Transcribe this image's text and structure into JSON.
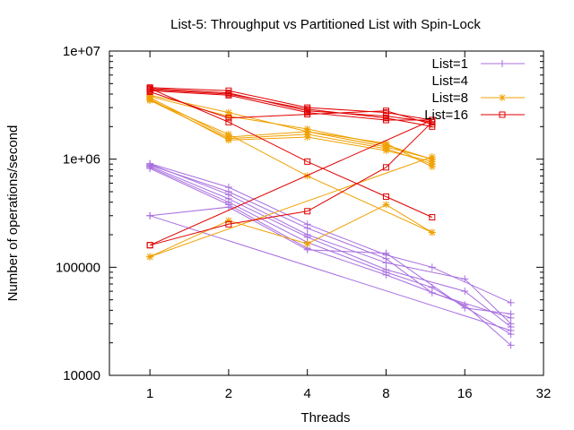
{
  "chart_data": {
    "type": "line",
    "title": "List-5: Throughput vs Partitioned List with Spin-Lock",
    "xlabel": "Threads",
    "ylabel": "Number of operations/second",
    "x_scale": "log2",
    "y_scale": "log10",
    "xlim": [
      0.7,
      32
    ],
    "ylim": [
      10000,
      10000000
    ],
    "x_ticks": [
      1,
      2,
      4,
      8,
      16,
      32
    ],
    "x_tick_labels": [
      "1",
      "2",
      "4",
      "8",
      "16",
      "32"
    ],
    "y_ticks": [
      10000,
      100000,
      1000000,
      10000000
    ],
    "y_tick_labels": [
      "10000",
      "100000",
      "1e+06",
      "1e+07"
    ],
    "grid": false,
    "legend_position": "top-right",
    "series": [
      {
        "name": "List=1",
        "color": "#a86ee0",
        "marker": "plus",
        "lines": [
          [
            [
              1,
              910000
            ],
            [
              2,
              550000
            ],
            [
              4,
              250000
            ],
            [
              8,
              130000
            ],
            [
              12,
              100000
            ],
            [
              24,
              47000
            ]
          ],
          [
            [
              1,
              880000
            ],
            [
              2,
              500000
            ],
            [
              4,
              230000
            ],
            [
              8,
              120000
            ],
            [
              12,
              58000
            ],
            [
              24,
              34000
            ]
          ],
          [
            [
              1,
              900000
            ],
            [
              2,
              470000
            ],
            [
              4,
              200000
            ],
            [
              8,
              110000
            ],
            [
              16,
              78000
            ],
            [
              24,
              30000
            ]
          ],
          [
            [
              1,
              860000
            ],
            [
              2,
              430000
            ],
            [
              4,
              190000
            ],
            [
              8,
              95000
            ],
            [
              16,
              60000
            ],
            [
              24,
              28000
            ]
          ],
          [
            [
              1,
              840000
            ],
            [
              2,
              400000
            ],
            [
              4,
              170000
            ],
            [
              8,
              90000
            ],
            [
              12,
              65000
            ],
            [
              24,
              24000
            ]
          ],
          [
            [
              1,
              820000
            ],
            [
              2,
              380000
            ],
            [
              4,
              150000
            ],
            [
              8,
              85000
            ],
            [
              16,
              45000
            ],
            [
              24,
              19000
            ]
          ],
          [
            [
              1,
              300000
            ],
            [
              2,
              360000
            ],
            [
              4,
              145000
            ],
            [
              8,
              135000
            ],
            [
              16,
              42000
            ],
            [
              24,
              37000
            ]
          ],
          [
            [
              1,
              300000
            ],
            [
              24,
              26000
            ]
          ]
        ]
      },
      {
        "name": "List=4",
        "color": "#ffffff",
        "marker": "none",
        "lines": []
      },
      {
        "name": "List=8",
        "color": "#f0a000",
        "marker": "star",
        "lines": [
          [
            [
              1,
              3700000
            ],
            [
              2,
              1600000
            ],
            [
              4,
              1800000
            ],
            [
              8,
              1300000
            ],
            [
              12,
              1000000
            ]
          ],
          [
            [
              1,
              3600000
            ],
            [
              2,
              1500000
            ],
            [
              4,
              1600000
            ],
            [
              8,
              1200000
            ],
            [
              12,
              950000
            ]
          ],
          [
            [
              1,
              3500000
            ],
            [
              2,
              1550000
            ],
            [
              4,
              1700000
            ],
            [
              8,
              1250000
            ],
            [
              12,
              900000
            ]
          ],
          [
            [
              1,
              3800000
            ],
            [
              2,
              2500000
            ],
            [
              4,
              1900000
            ],
            [
              8,
              1350000
            ],
            [
              12,
              1000000
            ]
          ],
          [
            [
              1,
              3900000
            ],
            [
              2,
              2700000
            ],
            [
              4,
              1800000
            ],
            [
              8,
              1400000
            ],
            [
              12,
              850000
            ]
          ],
          [
            [
              1,
              3500000
            ],
            [
              2,
              1700000
            ],
            [
              4,
              700000
            ],
            [
              12,
              210000
            ]
          ],
          [
            [
              1,
              125000
            ],
            [
              2,
              270000
            ],
            [
              4,
              165000
            ],
            [
              8,
              380000
            ],
            [
              12,
              210000
            ]
          ],
          [
            [
              1,
              125000
            ],
            [
              12,
              1050000
            ]
          ]
        ]
      },
      {
        "name": "List=16",
        "color": "#e00000",
        "marker": "square",
        "lines": [
          [
            [
              1,
              4600000
            ],
            [
              2,
              4300000
            ],
            [
              4,
              3000000
            ],
            [
              8,
              2700000
            ],
            [
              12,
              2300000
            ]
          ],
          [
            [
              1,
              4500000
            ],
            [
              2,
              4100000
            ],
            [
              4,
              2800000
            ],
            [
              8,
              2500000
            ],
            [
              12,
              2200000
            ]
          ],
          [
            [
              1,
              4400000
            ],
            [
              2,
              4000000
            ],
            [
              4,
              2900000
            ],
            [
              8,
              2400000
            ],
            [
              12,
              2000000
            ]
          ],
          [
            [
              1,
              4300000
            ],
            [
              2,
              3900000
            ],
            [
              4,
              2700000
            ],
            [
              8,
              2300000
            ],
            [
              12,
              2300000
            ]
          ],
          [
            [
              1,
              4200000
            ],
            [
              2,
              2400000
            ],
            [
              4,
              2600000
            ],
            [
              8,
              2800000
            ],
            [
              12,
              2100000
            ]
          ],
          [
            [
              1,
              4500000
            ],
            [
              2,
              2200000
            ],
            [
              4,
              950000
            ],
            [
              8,
              450000
            ],
            [
              12,
              290000
            ]
          ],
          [
            [
              1,
              160000
            ],
            [
              2,
              250000
            ],
            [
              4,
              330000
            ],
            [
              8,
              840000
            ],
            [
              12,
              2200000
            ]
          ],
          [
            [
              1,
              160000
            ],
            [
              12,
              2300000
            ]
          ]
        ]
      }
    ]
  }
}
